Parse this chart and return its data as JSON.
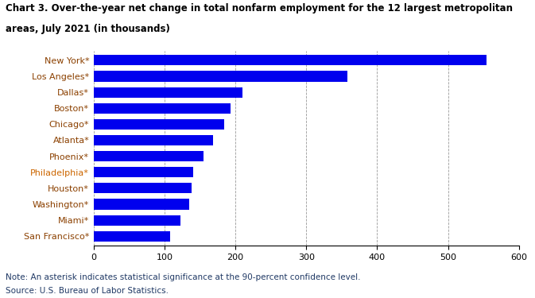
{
  "title_line1": "Chart 3. Over-the-year net change in total nonfarm employment for the 12 largest metropolitan",
  "title_line2": "areas, July 2021 (in thousands)",
  "categories": [
    "New York*",
    "Los Angeles*",
    "Dallas*",
    "Boston*",
    "Chicago*",
    "Atlanta*",
    "Phoenix*",
    "Philadelphia*",
    "Houston*",
    "Washington*",
    "Miami*",
    "San Francisco*"
  ],
  "values": [
    554,
    358,
    210,
    193,
    184,
    168,
    155,
    140,
    138,
    135,
    122,
    108
  ],
  "bar_color": "#0000EE",
  "xlim": [
    0,
    600
  ],
  "xticks": [
    0,
    100,
    200,
    300,
    400,
    500,
    600
  ],
  "note": "Note: An asterisk indicates statistical significance at the 90-percent confidence level.",
  "source": "Source: U.S. Bureau of Labor Statistics.",
  "label_color_default": "#8B4000",
  "label_colors": {
    "New York*": "#8B4000",
    "Los Angeles*": "#8B4000",
    "Dallas*": "#8B4000",
    "Boston*": "#8B4000",
    "Chicago*": "#8B4000",
    "Atlanta*": "#8B4000",
    "Phoenix*": "#8B4000",
    "Philadelphia*": "#CC6600",
    "Houston*": "#8B4000",
    "Washington*": "#8B4000",
    "Miami*": "#8B4000",
    "San Francisco*": "#8B4000"
  },
  "note_color": "#1F3864",
  "title_fontsize": 8.5,
  "tick_fontsize": 8,
  "note_fontsize": 7.5,
  "bar_height": 0.65
}
